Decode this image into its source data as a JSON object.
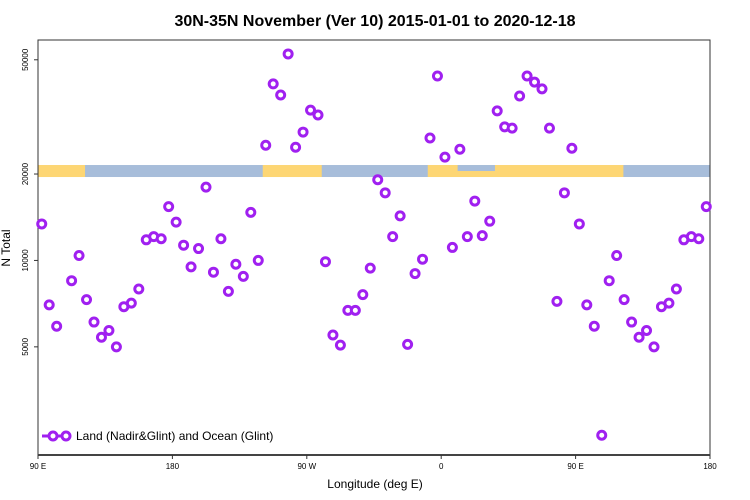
{
  "chart_data": {
    "type": "scatter",
    "title": "30N-35N November (Ver 10)   2015-01-01 to 2020-12-18",
    "xlabel": "Longitude (deg E)",
    "ylabel": "N Total",
    "xlim": [
      90,
      540
    ],
    "ylim": [
      2100,
      58600
    ],
    "y_scale": "log",
    "grid": false,
    "legend_placement": "bottom-left",
    "x_ticks": [
      {
        "value": 90,
        "label": "90 E"
      },
      {
        "value": 180,
        "label": "180"
      },
      {
        "value": 270,
        "label": "90 W"
      },
      {
        "value": 360,
        "label": "0"
      },
      {
        "value": 450,
        "label": "90 E"
      },
      {
        "value": 540,
        "label": "180"
      }
    ],
    "y_ticks": [
      {
        "value": 5000,
        "label": "5000"
      },
      {
        "value": 10000,
        "label": "10000"
      },
      {
        "value": 20000,
        "label": "20000"
      },
      {
        "value": 50000,
        "label": "50000"
      }
    ],
    "series": [
      {
        "name": "Land (Nadir&Glint) and Ocean (Glint)",
        "color": "#A020F0",
        "x": [
          92.5,
          97.5,
          102.5,
          112.5,
          117.5,
          122.5,
          127.5,
          132.5,
          137.5,
          142.5,
          147.5,
          152.5,
          157.5,
          162.5,
          167.5,
          172.5,
          177.5,
          182.5,
          187.5,
          192.5,
          197.5,
          202.5,
          207.5,
          212.5,
          217.5,
          222.5,
          227.5,
          232.5,
          237.5,
          242.5,
          247.5,
          252.5,
          257.5,
          262.5,
          267.5,
          272.5,
          277.5,
          282.5,
          287.5,
          292.5,
          297.5,
          302.5,
          307.5,
          312.5,
          317.5,
          322.5,
          327.5,
          332.5,
          337.5,
          342.5,
          347.5,
          352.5,
          357.5,
          362.5,
          367.5,
          372.5,
          377.5,
          382.5,
          387.5,
          392.5,
          397.5,
          402.5,
          407.5,
          412.5,
          417.5,
          422.5,
          427.5,
          432.5,
          437.5,
          442.5,
          447.5,
          452.5,
          457.5,
          462.5,
          467.5,
          472.5,
          477.5,
          482.5,
          487.5,
          492.5,
          497.5,
          502.5,
          507.5,
          512.5,
          517.5,
          522.5,
          527.5,
          532.5,
          537.5
        ],
        "y": [
          13400,
          7000,
          5900,
          8500,
          10400,
          7300,
          6100,
          5400,
          5700,
          5000,
          6900,
          7100,
          7950,
          11800,
          12100,
          11900,
          15400,
          13600,
          11300,
          9500,
          11000,
          18000,
          9100,
          11900,
          7800,
          9700,
          8800,
          14700,
          10000,
          25200,
          41200,
          37700,
          52400,
          24800,
          28000,
          33400,
          32100,
          9900,
          5500,
          5070,
          6700,
          6700,
          7600,
          9400,
          19100,
          17200,
          12100,
          14300,
          5100,
          9000,
          10100,
          26700,
          43900,
          22900,
          11100,
          24400,
          12100,
          16100,
          12200,
          13700,
          33200,
          29200,
          28900,
          37400,
          43900,
          41800,
          39600,
          28900,
          7200,
          17200,
          24600,
          13400,
          7000,
          5900,
          2460,
          8500,
          10400,
          7300,
          6100,
          5400,
          5700,
          5000,
          6900,
          7100,
          7950,
          11800,
          12100,
          11900,
          15400
        ]
      }
    ],
    "land_ocean_band": {
      "value": 20000,
      "ocean_color": "#A7BDDA",
      "land_color": "#FDD674",
      "land_segments": [
        [
          90,
          121.5
        ],
        [
          240.5,
          280
        ],
        [
          351,
          482
        ]
      ],
      "land_partial_segments": [
        [
          371,
          396
        ]
      ]
    }
  }
}
